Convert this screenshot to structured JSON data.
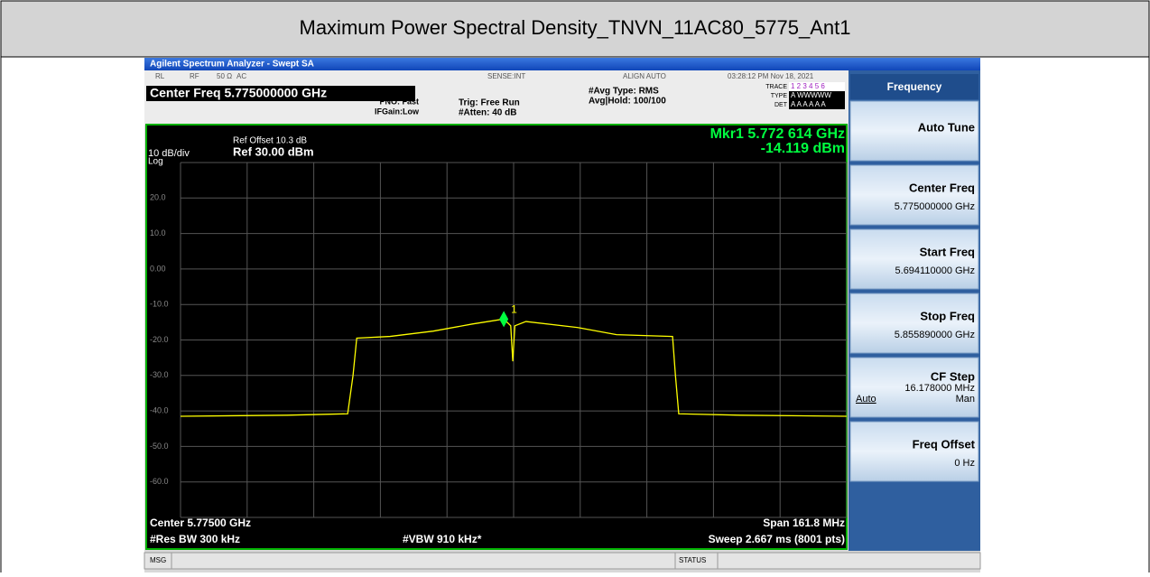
{
  "report": {
    "title": "Maximum Power Spectral Density_TNVN_11AC80_5775_Ant1"
  },
  "analyzer": {
    "title_bar": "Agilent Spectrum Analyzer - Swept SA",
    "status_row": [
      "RL",
      "RF",
      "50 Ω",
      "AC",
      "SENSE:INT",
      "ALIGN AUTO",
      "03:28:12 PM Nov 18, 2021"
    ],
    "center_freq": "Center Freq 5.775000000 GHz",
    "pno": "PNO: Fast",
    "ifgain": "IFGain:Low",
    "trig": "Trig: Free Run",
    "atten": "#Atten: 40 dB",
    "avg_type": "#Avg Type: RMS",
    "avg_hold": "Avg|Hold: 100/100",
    "trace_info": [
      {
        "label": "TRACE",
        "value": "1 2 3 4 5 6"
      },
      {
        "label": "TYPE",
        "value": "A WWWWW"
      },
      {
        "label": "DET",
        "value": "A A A A A A"
      }
    ],
    "softkey_title": "Frequency",
    "softkeys": [
      {
        "label": "Auto Tune"
      },
      {
        "label": "Center Freq",
        "value": "5.775000000 GHz"
      },
      {
        "label": "Start Freq",
        "value": "5.694110000 GHz"
      },
      {
        "label": "Stop Freq",
        "value": "5.855890000 GHz"
      },
      {
        "label": "CF Step",
        "value": "16.178000 MHz",
        "left": "Auto",
        "right": "Man"
      },
      {
        "label": "Freq Offset",
        "value": "0 Hz"
      }
    ],
    "msg": "MSG",
    "status": "STATUS"
  },
  "chart_data": {
    "type": "line",
    "ref_offset": "Ref Offset 10.3 dB",
    "scale": "10 dB/div",
    "ref_level": "Ref 30.00 dBm",
    "scale_type": "Log",
    "marker_readout": "Mkr1 5.772 614 GHz",
    "marker_value_readout": "-14.119 dBm",
    "marker_label": "1",
    "center": "Center 5.77500 GHz",
    "span": "Span 161.8 MHz",
    "rbw": "#Res BW 300 kHz",
    "vbw": "#VBW 910 kHz*",
    "sweep": "Sweep  2.667 ms (8001 pts)",
    "xlim": [
      5694.11,
      5855.89
    ],
    "ylim": [
      -70,
      30
    ],
    "yticks": [
      {
        "value": 20,
        "label": "20.0"
      },
      {
        "value": 10,
        "label": "10.0"
      },
      {
        "value": 0,
        "label": "0.00"
      },
      {
        "value": -10,
        "label": "-10.0"
      },
      {
        "value": -20,
        "label": "-20.0"
      },
      {
        "value": -30,
        "label": "-30.0"
      },
      {
        "value": -40,
        "label": "-40.0"
      },
      {
        "value": -50,
        "label": "-50.0"
      },
      {
        "value": -60,
        "label": "-60.0"
      }
    ],
    "grid": true,
    "series": [
      {
        "name": "Trace 1",
        "color": "#ffff00",
        "x": [
          5694.11,
          5720,
          5734.7,
          5736.0,
          5736.9,
          5745,
          5755.5,
          5765,
          5772.6,
          5774.3,
          5774.8,
          5775.3,
          5778,
          5790.6,
          5800,
          5813.6,
          5814.3,
          5815.1,
          5830,
          5855.89
        ],
        "values": [
          -41.5,
          -41.2,
          -40.8,
          -30,
          -19.5,
          -19,
          -17.5,
          -15.5,
          -14.1,
          -16,
          -26,
          -16,
          -14.8,
          -16.5,
          -18.5,
          -19,
          -30,
          -40.8,
          -41.2,
          -41.5
        ]
      }
    ],
    "marker": {
      "x": 5772.614,
      "y": -14.119,
      "color": "#00ff40"
    }
  }
}
